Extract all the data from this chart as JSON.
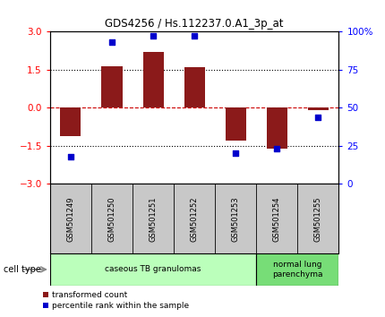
{
  "title": "GDS4256 / Hs.112237.0.A1_3p_at",
  "samples": [
    "GSM501249",
    "GSM501250",
    "GSM501251",
    "GSM501252",
    "GSM501253",
    "GSM501254",
    "GSM501255"
  ],
  "bar_values": [
    -1.1,
    1.65,
    2.2,
    1.6,
    -1.3,
    -1.6,
    -0.1
  ],
  "percentile_values": [
    18,
    93,
    97,
    97,
    20,
    23,
    44
  ],
  "bar_color": "#8B1A1A",
  "percentile_color": "#0000CC",
  "ylim_left": [
    -3,
    3
  ],
  "ylim_right": [
    0,
    100
  ],
  "yticks_left": [
    -3,
    -1.5,
    0,
    1.5,
    3
  ],
  "yticks_right": [
    0,
    25,
    50,
    75,
    100
  ],
  "ytick_labels_right": [
    "0",
    "25",
    "50",
    "75",
    "100%"
  ],
  "cell_type_groups": [
    {
      "label": "caseous TB granulomas",
      "start": 0,
      "end": 5,
      "color": "#BBFFBB"
    },
    {
      "label": "normal lung\nparenchyma",
      "start": 5,
      "end": 7,
      "color": "#77DD77"
    }
  ],
  "cell_type_label": "cell type",
  "legend_bar_label": "transformed count",
  "legend_percentile_label": "percentile rank within the sample",
  "zero_line_color": "#CC0000",
  "bar_width": 0.5
}
